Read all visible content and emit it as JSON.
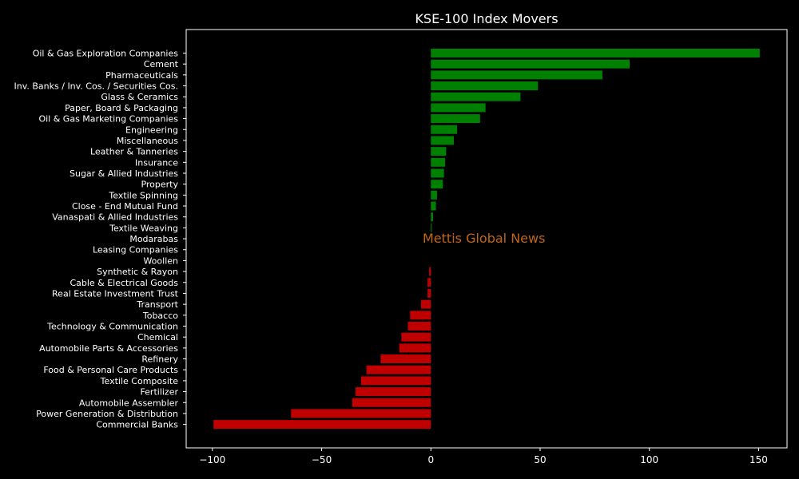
{
  "chart_data": {
    "type": "bar",
    "orientation": "horizontal",
    "title": "KSE-100 Index Movers",
    "watermark": "Mettis Global News",
    "xlim": [
      -112,
      163
    ],
    "xticks": [
      -100,
      -50,
      0,
      50,
      100,
      150
    ],
    "xtick_labels": [
      "−100",
      "−50",
      "0",
      "50",
      "100",
      "150"
    ],
    "positive_color": "#008000",
    "negative_color": "#c00000",
    "categories": [
      "Oil & Gas Exploration Companies",
      "Cement",
      "Pharmaceuticals",
      "Inv. Banks / Inv. Cos. / Securities Cos.",
      "Glass & Ceramics",
      "Paper, Board & Packaging",
      "Oil & Gas Marketing Companies",
      "Engineering",
      "Miscellaneous",
      "Leather & Tanneries",
      "Insurance",
      "Sugar & Allied Industries",
      "Property",
      "Textile Spinning",
      "Close - End Mutual Fund",
      "Vanaspati & Allied Industries",
      "Textile Weaving",
      "Modarabas",
      "Leasing Companies",
      "Woollen",
      "Synthetic & Rayon",
      "Cable & Electrical Goods",
      "Real Estate Investment Trust",
      "Transport",
      "Tobacco",
      "Technology & Communication",
      "Chemical",
      "Automobile Parts & Accessories",
      "Refinery",
      "Food & Personal Care Products",
      "Textile Composite",
      "Fertilizer",
      "Automobile Assembler",
      "Power Generation & Distribution",
      "Commercial Banks"
    ],
    "values": [
      150.5,
      91,
      78.5,
      49,
      41,
      25,
      22.5,
      12,
      10.5,
      7,
      6.5,
      6,
      5.5,
      2.8,
      2.3,
      1,
      0.4,
      0,
      0,
      0,
      -0.8,
      -1.5,
      -1.5,
      -4.5,
      -9.5,
      -10.5,
      -13.5,
      -14.5,
      -23,
      -29.5,
      -32,
      -34.5,
      -36,
      -64,
      -99.5
    ]
  }
}
